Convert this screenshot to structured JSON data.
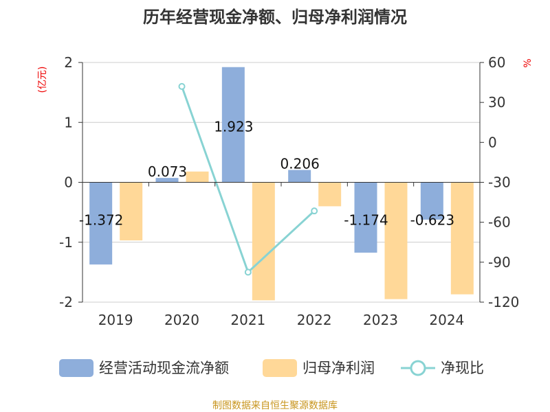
{
  "chart_data": {
    "type": "bar",
    "title": "历年经营现金净额、归母净利润情况",
    "ylabel": "(亿元)",
    "y2label": "%",
    "ylim": [
      -2,
      2
    ],
    "y2lim": [
      -120,
      60
    ],
    "yticks": [
      "2",
      "1",
      "0",
      "-1",
      "-2"
    ],
    "y2ticks": [
      "60",
      "30",
      "0",
      "-30",
      "-60",
      "-90",
      "-120"
    ],
    "categories": [
      "2019",
      "2020",
      "2021",
      "2022",
      "2023",
      "2024"
    ],
    "series": [
      {
        "name": "经营活动现金流净额",
        "type": "bar",
        "axis": "left",
        "color": "#8eaedb",
        "values": [
          -1.372,
          0.073,
          1.923,
          0.206,
          -1.174,
          -0.623
        ],
        "labels": [
          "-1.372",
          "0.073",
          "1.923",
          "0.206",
          "-1.174",
          "-0.623"
        ]
      },
      {
        "name": "归母净利润",
        "type": "bar",
        "axis": "left",
        "color": "#ffd898",
        "values": [
          -0.97,
          0.18,
          -1.97,
          -0.4,
          -1.95,
          -1.87
        ]
      },
      {
        "name": "净现比",
        "type": "line",
        "axis": "right",
        "color": "#88d3d3",
        "values": [
          null,
          42,
          -97.5,
          -51.5,
          null,
          null
        ]
      }
    ],
    "legend_position": "bottom",
    "grid": true
  },
  "source": "制图数据来自恒生聚源数据库"
}
